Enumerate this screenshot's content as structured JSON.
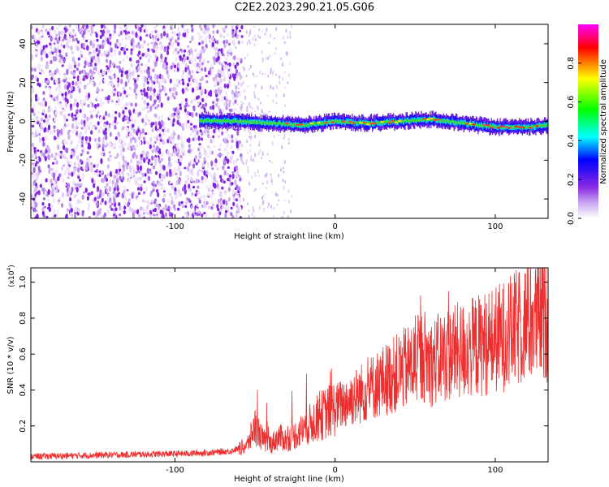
{
  "title": "C2E2.2023.290.21.05.G06",
  "colors": {
    "snr_line": "#ee2f2f",
    "colormap": [
      "#ffffff",
      "#8a2be2",
      "#0000ff",
      "#00ffff",
      "#00ff00",
      "#ffff00",
      "#ff0000",
      "#ff00ff"
    ]
  },
  "chart_data": [
    {
      "type": "heatmap",
      "xlabel": "Height of straight line (km)",
      "ylabel": "Frequency (Hz)",
      "xlim": [
        -190,
        133
      ],
      "ylim": [
        -50,
        50
      ],
      "xticks": [
        -100,
        0,
        100
      ],
      "xtick_labels": [
        "-100",
        "0",
        "100"
      ],
      "yticks": [
        -40,
        -20,
        0,
        20,
        40
      ],
      "ytick_labels": [
        "-40",
        "-20",
        "0",
        "20",
        "40"
      ],
      "colorbar": {
        "label": "Normalized spectral amplitude",
        "range": [
          0,
          1
        ],
        "ticks": [
          0.0,
          0.2,
          0.4,
          0.6,
          0.8
        ],
        "tick_labels": [
          "0.0",
          "0.2",
          "0.4",
          "0.6",
          "0.8"
        ]
      },
      "noise_region_end_km": -62,
      "signal_track": {
        "start_km": -85,
        "x": [
          -85,
          -60,
          -40,
          -20,
          0,
          20,
          40,
          60,
          80,
          100,
          120,
          133
        ],
        "freq_hz": [
          0.5,
          0,
          -1,
          -2,
          0,
          -1,
          0,
          1,
          -1,
          -3,
          -3,
          -2
        ]
      }
    },
    {
      "type": "line",
      "xlabel": "Height of straight line (km)",
      "ylabel": "SNR (10 * v/v)",
      "y_multiplier": "(x10",
      "y_multiplier_exp": "4",
      "y_multiplier_close": ")",
      "xlim": [
        -190,
        133
      ],
      "ylim": [
        0,
        1.08
      ],
      "xticks": [
        -100,
        0,
        100
      ],
      "xtick_labels": [
        "-100",
        "0",
        "100"
      ],
      "yticks": [
        0.2,
        0.4,
        0.6,
        0.8,
        1.0
      ],
      "ytick_labels": [
        "0.2",
        "0.4",
        "0.6",
        "0.8",
        "1.0"
      ],
      "series": [
        {
          "x": [
            -190,
            -160,
            -130,
            -100,
            -80,
            -65,
            -55,
            -50,
            -45,
            -40,
            -35,
            -30,
            -20,
            -10,
            0,
            10,
            20,
            30,
            40,
            50,
            55,
            60,
            70,
            80,
            90,
            100,
            110,
            120,
            133
          ],
          "y": [
            0.03,
            0.035,
            0.04,
            0.045,
            0.05,
            0.06,
            0.09,
            0.2,
            0.12,
            0.1,
            0.14,
            0.12,
            0.18,
            0.25,
            0.3,
            0.35,
            0.4,
            0.45,
            0.5,
            0.55,
            0.6,
            0.55,
            0.6,
            0.62,
            0.65,
            0.68,
            0.72,
            0.78,
            0.8
          ]
        }
      ]
    }
  ]
}
